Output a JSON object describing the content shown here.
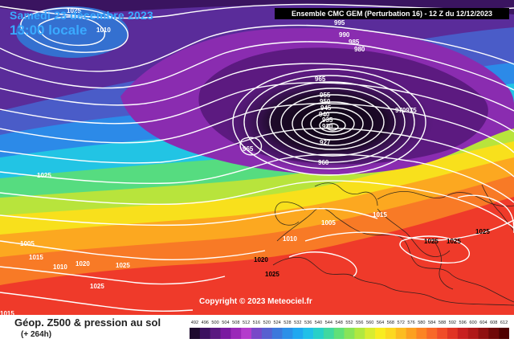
{
  "header": {
    "date": "Samedi 23 décembre 2023",
    "time": "13:00 locale",
    "ensemble": "Ensemble CMC GEM  (Perturbation 16)  -  12 Z du 12/12/2023"
  },
  "copyright": "Copyright © 2023 Meteociel.fr",
  "footer": {
    "title": "Géop. Z500 & pression au sol",
    "subtitle": "(+ 264h)"
  },
  "scale": {
    "values": [
      "492",
      "496",
      "500",
      "504",
      "508",
      "512",
      "516",
      "520",
      "524",
      "528",
      "532",
      "536",
      "540",
      "544",
      "548",
      "552",
      "556",
      "560",
      "564",
      "568",
      "572",
      "576",
      "580",
      "584",
      "588",
      "592",
      "596",
      "600",
      "604",
      "608",
      "612"
    ],
    "colors": [
      "#1e0a2e",
      "#3c1060",
      "#5a1880",
      "#7a1aa0",
      "#9a28b8",
      "#b43ccc",
      "#7848c8",
      "#5860d0",
      "#3c78dc",
      "#2c90e8",
      "#20a8f0",
      "#20c0e8",
      "#28d0c8",
      "#40d8a0",
      "#60e078",
      "#88e458",
      "#b0e840",
      "#d8ec30",
      "#f8ec20",
      "#fcd820",
      "#fcbc20",
      "#fca020",
      "#fc8424",
      "#f86828",
      "#f04c28",
      "#e03424",
      "#c82020",
      "#b01818",
      "#901010",
      "#700808",
      "#500000"
    ]
  },
  "isobars": [
    {
      "text": "1025",
      "cls": "w"
    },
    {
      "text": "1010",
      "cls": "w"
    },
    {
      "text": "995",
      "cls": "w"
    },
    {
      "text": "990",
      "cls": "w"
    },
    {
      "text": "985",
      "cls": "w"
    },
    {
      "text": "980",
      "cls": "w"
    },
    {
      "text": "965",
      "cls": "w"
    },
    {
      "text": "955",
      "cls": "w"
    },
    {
      "text": "950",
      "cls": "w"
    },
    {
      "text": "945",
      "cls": "w"
    },
    {
      "text": "940",
      "cls": "w"
    },
    {
      "text": "935",
      "cls": "w"
    },
    {
      "text": "930",
      "cls": "w"
    },
    {
      "text": "927",
      "cls": "w"
    },
    {
      "text": "970975",
      "cls": "w"
    },
    {
      "text": "965",
      "cls": "w"
    },
    {
      "text": "960",
      "cls": "w"
    },
    {
      "text": "1025",
      "cls": "w"
    },
    {
      "text": "1005",
      "cls": "w"
    },
    {
      "text": "1015",
      "cls": "w"
    },
    {
      "text": "1010",
      "cls": "w"
    },
    {
      "text": "1005",
      "cls": "w"
    },
    {
      "text": "1015",
      "cls": "w"
    },
    {
      "text": "1010",
      "cls": "w"
    },
    {
      "text": "1020",
      "cls": "w"
    },
    {
      "text": "1025",
      "cls": "w"
    },
    {
      "text": "1020",
      "cls": "w"
    },
    {
      "text": "1025",
      "cls": "w"
    },
    {
      "text": "1025",
      "cls": "w"
    },
    {
      "text": "1025",
      "cls": "w"
    },
    {
      "text": "1025",
      "cls": "w"
    },
    {
      "text": "1025",
      "cls": "w"
    },
    {
      "text": "1015",
      "cls": "w"
    }
  ]
}
